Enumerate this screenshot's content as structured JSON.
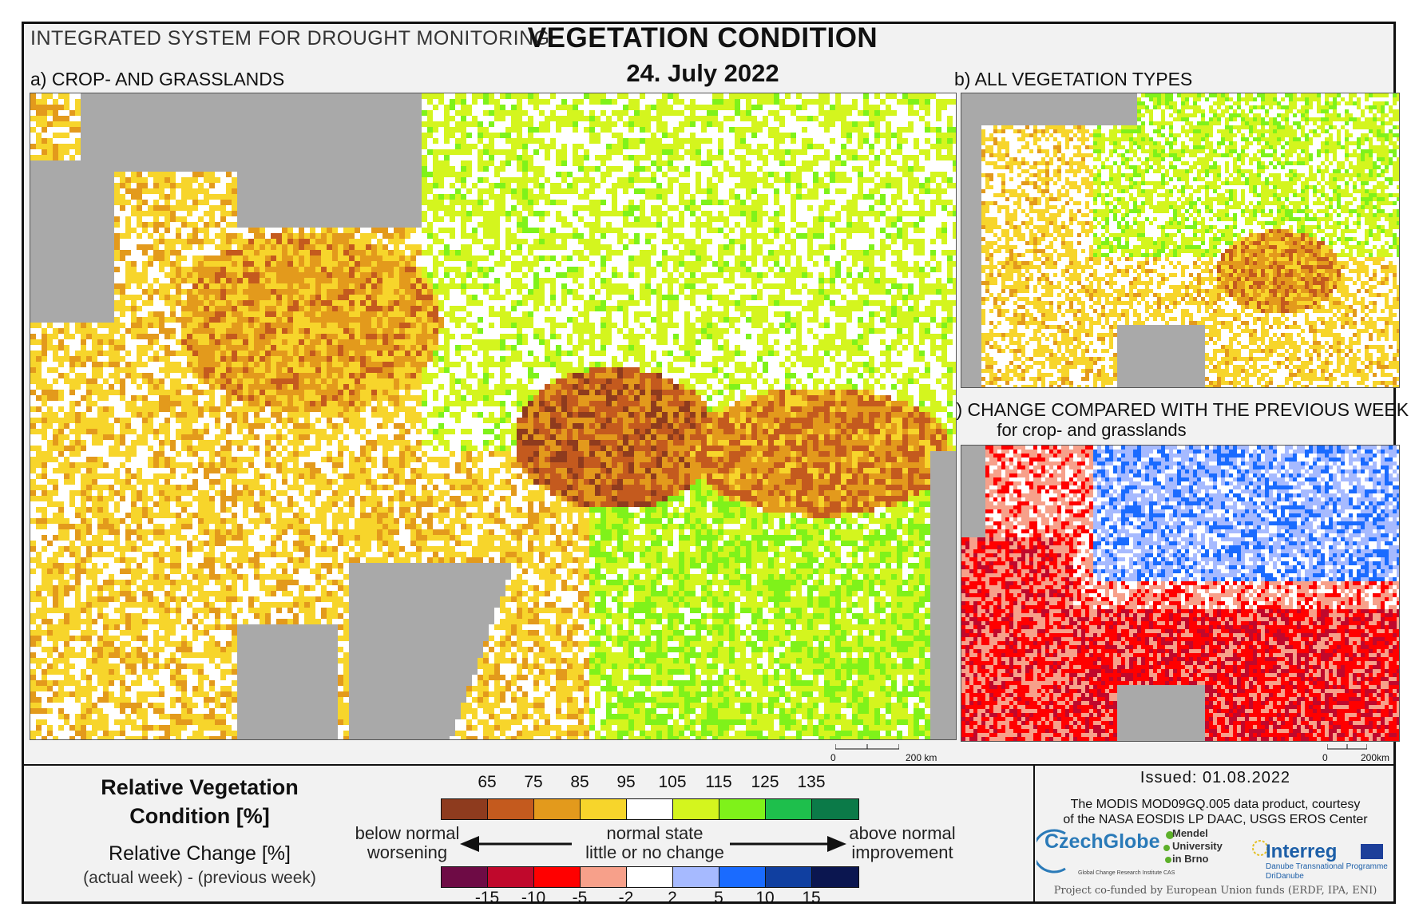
{
  "header": {
    "system_title": "INTEGRATED SYSTEM FOR DROUGHT MONITORING",
    "main_title": "VEGETATION CONDITION",
    "date": "24. July 2022"
  },
  "panels": {
    "a_title": "a) CROP- AND GRASSLANDS",
    "b_title": "b) ALL VEGETATION TYPES",
    "c_title": "c) CHANGE COMPARED WITH THE PREVIOUS WEEK",
    "c_subtitle": "for crop- and grasslands"
  },
  "scalebars": {
    "a": {
      "zero": "0",
      "label": "200 km"
    },
    "c": {
      "zero": "0",
      "label": "200km"
    }
  },
  "legend": {
    "rvc_title_line1": "Relative Vegetation",
    "rvc_title_line2": "Condition [%]",
    "rc_title": "Relative Change [%]",
    "rc_subtitle": "(actual week) - (previous week)",
    "rvc_ticks": [
      "65",
      "75",
      "85",
      "95",
      "105",
      "115",
      "125",
      "135"
    ],
    "rvc_colors": [
      "#8e3b1e",
      "#c45a1e",
      "#e39a1c",
      "#f7d52b",
      "#ffffff",
      "#d4f51e",
      "#7ff21a",
      "#1ebf4c",
      "#0b7a48"
    ],
    "rc_ticks": [
      "-15",
      "-10",
      "-5",
      "-2",
      "2",
      "5",
      "10",
      "15"
    ],
    "rc_colors": [
      "#6e0b45",
      "#c0082c",
      "#ff0000",
      "#f7a08a",
      "#ffffff",
      "#a6baff",
      "#1a6bff",
      "#103fa0",
      "#0b1650"
    ],
    "left_line1": "below normal",
    "left_line2": "worsening",
    "mid_line1": "normal state",
    "mid_line2": "little or no change",
    "right_line1": "above normal",
    "right_line2": "improvement"
  },
  "footer": {
    "issued": "Issued: 01.08.2022",
    "credit_line1": "The MODIS MOD09GQ.005 data product, courtesy",
    "credit_line2": "of the NASA EOSDIS LP DAAC, USGS EROS Center",
    "logo_czechglobe": "CzechGlobe",
    "logo_czechglobe_sub": "Global Change Research Institute CAS",
    "logo_mendel_1": "Mendel",
    "logo_mendel_2": "University",
    "logo_mendel_3": "in Brno",
    "logo_interreg": "Interreg",
    "logo_interreg_sub1": "Danube Transnational Programme",
    "logo_interreg_sub2": "DriDanube",
    "cofund": "Project co-funded by European Union funds (ERDF, IPA, ENI)"
  }
}
